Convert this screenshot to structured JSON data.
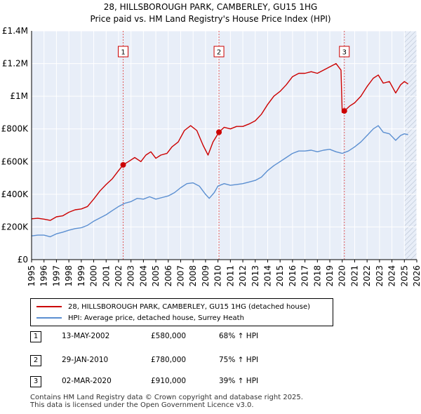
{
  "title": {
    "line1": "28, HILLSBOROUGH PARK, CAMBERLEY, GU15 1HG",
    "line2": "Price paid vs. HM Land Registry's House Price Index (HPI)"
  },
  "colors": {
    "property": "#cc0000",
    "hpi": "#5b8fd1",
    "grid": "#ffffff",
    "plot_bg": "#e8eef8",
    "shade": "#dce6f5",
    "marker_line": "#e05a5a"
  },
  "chart_data": {
    "type": "line",
    "xlim": [
      1995,
      2026
    ],
    "ylim": [
      0,
      1400000
    ],
    "x_ticks": [
      1995,
      1996,
      1997,
      1998,
      1999,
      2000,
      2001,
      2002,
      2003,
      2004,
      2005,
      2006,
      2007,
      2008,
      2009,
      2010,
      2011,
      2012,
      2013,
      2014,
      2015,
      2016,
      2017,
      2018,
      2019,
      2020,
      2021,
      2022,
      2023,
      2024,
      2025,
      2026
    ],
    "y_ticks": [
      {
        "value": 0,
        "label": "£0"
      },
      {
        "value": 200000,
        "label": "£200K"
      },
      {
        "value": 400000,
        "label": "£400K"
      },
      {
        "value": 600000,
        "label": "£600K"
      },
      {
        "value": 800000,
        "label": "£800K"
      },
      {
        "value": 1000000,
        "label": "£1M"
      },
      {
        "value": 1200000,
        "label": "£1.2M"
      },
      {
        "value": 1400000,
        "label": "£1.4M"
      }
    ],
    "forecast_start": 2025.0,
    "series": [
      {
        "name": "28, HILLSBOROUGH PARK, CAMBERLEY, GU15 1HG (detached house)",
        "color": "#cc0000",
        "points": [
          [
            1995.0,
            250000
          ],
          [
            1995.5,
            253000
          ],
          [
            1996.0,
            248000
          ],
          [
            1996.5,
            240000
          ],
          [
            1997.0,
            262000
          ],
          [
            1997.5,
            268000
          ],
          [
            1998.0,
            290000
          ],
          [
            1998.5,
            305000
          ],
          [
            1999.0,
            310000
          ],
          [
            1999.5,
            325000
          ],
          [
            2000.0,
            370000
          ],
          [
            2000.5,
            420000
          ],
          [
            2001.0,
            460000
          ],
          [
            2001.5,
            495000
          ],
          [
            2002.0,
            545000
          ],
          [
            2002.37,
            580000
          ],
          [
            2002.8,
            600000
          ],
          [
            2003.3,
            625000
          ],
          [
            2003.8,
            600000
          ],
          [
            2004.2,
            640000
          ],
          [
            2004.6,
            660000
          ],
          [
            2005.0,
            620000
          ],
          [
            2005.4,
            640000
          ],
          [
            2005.9,
            650000
          ],
          [
            2006.3,
            690000
          ],
          [
            2006.8,
            720000
          ],
          [
            2007.3,
            790000
          ],
          [
            2007.8,
            820000
          ],
          [
            2008.3,
            790000
          ],
          [
            2008.8,
            700000
          ],
          [
            2009.2,
            640000
          ],
          [
            2009.6,
            720000
          ],
          [
            2010.08,
            780000
          ],
          [
            2010.5,
            810000
          ],
          [
            2011.0,
            800000
          ],
          [
            2011.5,
            815000
          ],
          [
            2012.0,
            815000
          ],
          [
            2012.5,
            830000
          ],
          [
            2013.0,
            850000
          ],
          [
            2013.5,
            890000
          ],
          [
            2014.0,
            950000
          ],
          [
            2014.5,
            1000000
          ],
          [
            2015.0,
            1030000
          ],
          [
            2015.5,
            1070000
          ],
          [
            2016.0,
            1120000
          ],
          [
            2016.5,
            1140000
          ],
          [
            2017.0,
            1140000
          ],
          [
            2017.5,
            1150000
          ],
          [
            2018.0,
            1140000
          ],
          [
            2018.5,
            1160000
          ],
          [
            2019.0,
            1180000
          ],
          [
            2019.5,
            1200000
          ],
          [
            2019.9,
            1160000
          ],
          [
            2020.0,
            900000
          ],
          [
            2020.17,
            910000
          ],
          [
            2020.6,
            940000
          ],
          [
            2021.0,
            960000
          ],
          [
            2021.5,
            1000000
          ],
          [
            2022.0,
            1060000
          ],
          [
            2022.5,
            1110000
          ],
          [
            2022.9,
            1130000
          ],
          [
            2023.3,
            1080000
          ],
          [
            2023.8,
            1090000
          ],
          [
            2024.3,
            1020000
          ],
          [
            2024.7,
            1070000
          ],
          [
            2025.0,
            1090000
          ],
          [
            2025.3,
            1075000
          ]
        ]
      },
      {
        "name": "HPI: Average price, detached house, Surrey Heath",
        "color": "#5b8fd1",
        "points": [
          [
            1995.0,
            145000
          ],
          [
            1995.5,
            150000
          ],
          [
            1996.0,
            150000
          ],
          [
            1996.5,
            140000
          ],
          [
            1997.0,
            158000
          ],
          [
            1997.5,
            168000
          ],
          [
            1998.0,
            180000
          ],
          [
            1998.5,
            190000
          ],
          [
            1999.0,
            195000
          ],
          [
            1999.5,
            210000
          ],
          [
            2000.0,
            235000
          ],
          [
            2000.5,
            255000
          ],
          [
            2001.0,
            275000
          ],
          [
            2001.5,
            300000
          ],
          [
            2002.0,
            325000
          ],
          [
            2002.5,
            345000
          ],
          [
            2003.0,
            355000
          ],
          [
            2003.5,
            375000
          ],
          [
            2004.0,
            370000
          ],
          [
            2004.5,
            385000
          ],
          [
            2005.0,
            370000
          ],
          [
            2005.5,
            380000
          ],
          [
            2006.0,
            390000
          ],
          [
            2006.5,
            410000
          ],
          [
            2007.0,
            440000
          ],
          [
            2007.5,
            465000
          ],
          [
            2008.0,
            470000
          ],
          [
            2008.5,
            450000
          ],
          [
            2009.0,
            400000
          ],
          [
            2009.3,
            375000
          ],
          [
            2009.7,
            410000
          ],
          [
            2010.0,
            450000
          ],
          [
            2010.5,
            465000
          ],
          [
            2011.0,
            455000
          ],
          [
            2011.5,
            460000
          ],
          [
            2012.0,
            465000
          ],
          [
            2012.5,
            475000
          ],
          [
            2013.0,
            485000
          ],
          [
            2013.5,
            505000
          ],
          [
            2014.0,
            545000
          ],
          [
            2014.5,
            575000
          ],
          [
            2015.0,
            600000
          ],
          [
            2015.5,
            625000
          ],
          [
            2016.0,
            650000
          ],
          [
            2016.5,
            665000
          ],
          [
            2017.0,
            665000
          ],
          [
            2017.5,
            670000
          ],
          [
            2018.0,
            660000
          ],
          [
            2018.5,
            670000
          ],
          [
            2019.0,
            675000
          ],
          [
            2019.5,
            660000
          ],
          [
            2020.0,
            650000
          ],
          [
            2020.5,
            665000
          ],
          [
            2021.0,
            690000
          ],
          [
            2021.5,
            720000
          ],
          [
            2022.0,
            760000
          ],
          [
            2022.5,
            800000
          ],
          [
            2022.9,
            820000
          ],
          [
            2023.3,
            780000
          ],
          [
            2023.8,
            770000
          ],
          [
            2024.3,
            730000
          ],
          [
            2024.7,
            760000
          ],
          [
            2025.0,
            770000
          ],
          [
            2025.3,
            765000
          ]
        ]
      }
    ],
    "sales": [
      {
        "label": "1",
        "x": 2002.37,
        "y": 580000
      },
      {
        "label": "2",
        "x": 2010.08,
        "y": 780000
      },
      {
        "label": "3",
        "x": 2020.17,
        "y": 910000
      }
    ]
  },
  "legend": {
    "property_label": "28, HILLSBOROUGH PARK, CAMBERLEY, GU15 1HG (detached house)",
    "hpi_label": "HPI: Average price, detached house, Surrey Heath"
  },
  "transactions": [
    {
      "num": "1",
      "date": "13-MAY-2002",
      "price": "£580,000",
      "hpi": "68% ↑ HPI"
    },
    {
      "num": "2",
      "date": "29-JAN-2010",
      "price": "£780,000",
      "hpi": "75% ↑ HPI"
    },
    {
      "num": "3",
      "date": "02-MAR-2020",
      "price": "£910,000",
      "hpi": "39% ↑ HPI"
    }
  ],
  "footer": {
    "line1": "Contains HM Land Registry data © Crown copyright and database right 2025.",
    "line2": "This data is licensed under the Open Government Licence v3.0."
  }
}
